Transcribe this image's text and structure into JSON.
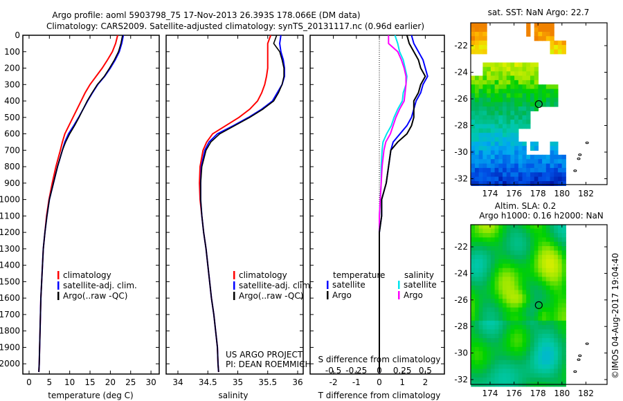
{
  "title": {
    "line1": "Argo profile: aoml 5903798_75 17-Nov-2013 26.393S 178.066E (DM data)",
    "line2": "Climatology: CARS2009. Satellite-adjusted climatology: synTS_20131117.nc (0.96d earlier)"
  },
  "colors": {
    "climatology": "#ff0000",
    "satellite": "#0000ff",
    "argo": "#000000",
    "sal_satellite": "#00e5ee",
    "sal_argo": "#ff00ff"
  },
  "chart_data": [
    {
      "type": "line",
      "name": "temperature-profile",
      "xlabel": "temperature (deg C)",
      "xlim": [
        -2,
        31
      ],
      "xticks": [
        "0",
        "5",
        "10",
        "15",
        "20",
        "25",
        "30"
      ],
      "ylim": [
        0,
        2060
      ],
      "yticks": [
        "0",
        "100",
        "200",
        "300",
        "400",
        "500",
        "600",
        "700",
        "800",
        "900",
        "1000",
        "1100",
        "1200",
        "1300",
        "1400",
        "1500",
        "1600",
        "1700",
        "1800",
        "1900",
        "2000"
      ],
      "legend": [
        "climatology",
        "satellite-adj. clim.",
        "Argo(..raw -QC)"
      ],
      "depth": [
        0,
        50,
        100,
        150,
        200,
        250,
        300,
        350,
        400,
        450,
        500,
        550,
        600,
        650,
        700,
        800,
        900,
        1000,
        1100,
        1200,
        1300,
        1400,
        1500,
        1600,
        1700,
        1800,
        1900,
        2000,
        2050
      ],
      "series": [
        {
          "name": "climatology",
          "values": [
            21.8,
            21.3,
            20.5,
            19.3,
            18,
            16.5,
            15,
            13.8,
            12.8,
            11.8,
            10.8,
            9.8,
            8.8,
            8.2,
            7.7,
            6.6,
            5.7,
            4.9,
            4.3,
            3.9,
            3.5,
            3.3,
            3.1,
            2.9,
            2.8,
            2.7,
            2.6,
            2.5,
            2.4
          ]
        },
        {
          "name": "satellite-adj. clim.",
          "values": [
            23.2,
            22.8,
            22.2,
            21.2,
            20,
            18.6,
            16.9,
            15.6,
            14.4,
            13.3,
            12.2,
            11,
            9.7,
            8.8,
            8.2,
            7,
            6,
            5,
            4.4,
            3.9,
            3.5,
            3.3,
            3.1,
            2.9,
            2.8,
            2.7,
            2.6,
            2.5,
            2.4
          ]
        },
        {
          "name": "Argo",
          "values": [
            23,
            22.6,
            22,
            21,
            19.8,
            18.5,
            16.8,
            15.5,
            14.3,
            13.3,
            12.3,
            11.2,
            10,
            9,
            8.2,
            7,
            6,
            5,
            4.4,
            3.9,
            3.5,
            3.3,
            3.1,
            2.9,
            2.8,
            2.7,
            2.6,
            2.5,
            2.4
          ]
        }
      ]
    },
    {
      "type": "line",
      "name": "salinity-profile",
      "xlabel": "salinity",
      "xlim": [
        33.8,
        36.1
      ],
      "xticks": [
        "34",
        "34.5",
        "35",
        "35.5",
        "36"
      ],
      "ylim": [
        0,
        2060
      ],
      "legend": [
        "climatology",
        "satellite-adj. clim.",
        "Argo(..raw -QC)"
      ],
      "annotation": [
        "US ARGO PROJECT",
        "PI: DEAN ROEMMICH"
      ],
      "depth": [
        0,
        50,
        100,
        150,
        200,
        250,
        300,
        350,
        400,
        450,
        500,
        550,
        600,
        650,
        700,
        800,
        900,
        1000,
        1100,
        1200,
        1300,
        1400,
        1500,
        1600,
        1700,
        1800,
        1900,
        2000,
        2050
      ],
      "series": [
        {
          "name": "climatology",
          "values": [
            35.55,
            35.5,
            35.5,
            35.5,
            35.5,
            35.48,
            35.45,
            35.4,
            35.33,
            35.2,
            35.02,
            34.8,
            34.58,
            34.48,
            34.42,
            34.37,
            34.36,
            34.37,
            34.4,
            34.43,
            34.47,
            34.5,
            34.53,
            34.56,
            34.6,
            34.63,
            34.66,
            34.67,
            34.68
          ]
        },
        {
          "name": "satellite-adj. clim.",
          "values": [
            35.72,
            35.7,
            35.72,
            35.76,
            35.78,
            35.78,
            35.74,
            35.66,
            35.58,
            35.4,
            35.18,
            34.93,
            34.66,
            34.52,
            34.45,
            34.39,
            34.38,
            34.38,
            34.4,
            34.43,
            34.47,
            34.5,
            34.53,
            34.56,
            34.6,
            34.63,
            34.66,
            34.67,
            34.68
          ]
        },
        {
          "name": "Argo",
          "values": [
            35.65,
            35.6,
            35.7,
            35.74,
            35.77,
            35.77,
            35.74,
            35.68,
            35.6,
            35.42,
            35.2,
            34.95,
            34.7,
            34.55,
            34.47,
            34.4,
            34.38,
            34.38,
            34.4,
            34.43,
            34.47,
            34.5,
            34.53,
            34.56,
            34.6,
            34.63,
            34.66,
            34.67,
            34.68
          ]
        }
      ]
    },
    {
      "type": "line",
      "name": "difference-from-climatology",
      "xlabel": "T difference from climatology",
      "xlabel_top": "S difference from climatology",
      "xlim": [
        -3,
        3
      ],
      "xticks": [
        "-2",
        "-1",
        "0",
        "1",
        "2"
      ],
      "s_xticks": [
        "-0.5",
        "-0.25",
        "0",
        "0.25",
        "0.5"
      ],
      "legend_headers": [
        "temperature",
        "salinity"
      ],
      "legend": [
        "satellite",
        "Argo",
        "satellite",
        "Argo"
      ]
    },
    {
      "type": "heatmap",
      "name": "sst-map",
      "title": "sat. SST: NaN Argo: 22.7",
      "xticks": [
        "174",
        "176",
        "178",
        "180",
        "182"
      ],
      "yticks": [
        "-22",
        "-24",
        "-26",
        "-28",
        "-30",
        "-32"
      ],
      "argo_position": [
        178.066,
        -26.393
      ]
    },
    {
      "type": "heatmap",
      "name": "sla-map",
      "title_line1": "Altim. SLA: 0.2",
      "title_line2": "Argo h1000: 0.16 h2000: NaN",
      "xticks": [
        "174",
        "176",
        "178",
        "180",
        "182"
      ],
      "yticks": [
        "-22",
        "-24",
        "-26",
        "-28",
        "-30",
        "-32"
      ],
      "argo_position": [
        178.066,
        -26.393
      ]
    }
  ],
  "credit": "©IMOS 04-Aug-2017 19:04:40"
}
